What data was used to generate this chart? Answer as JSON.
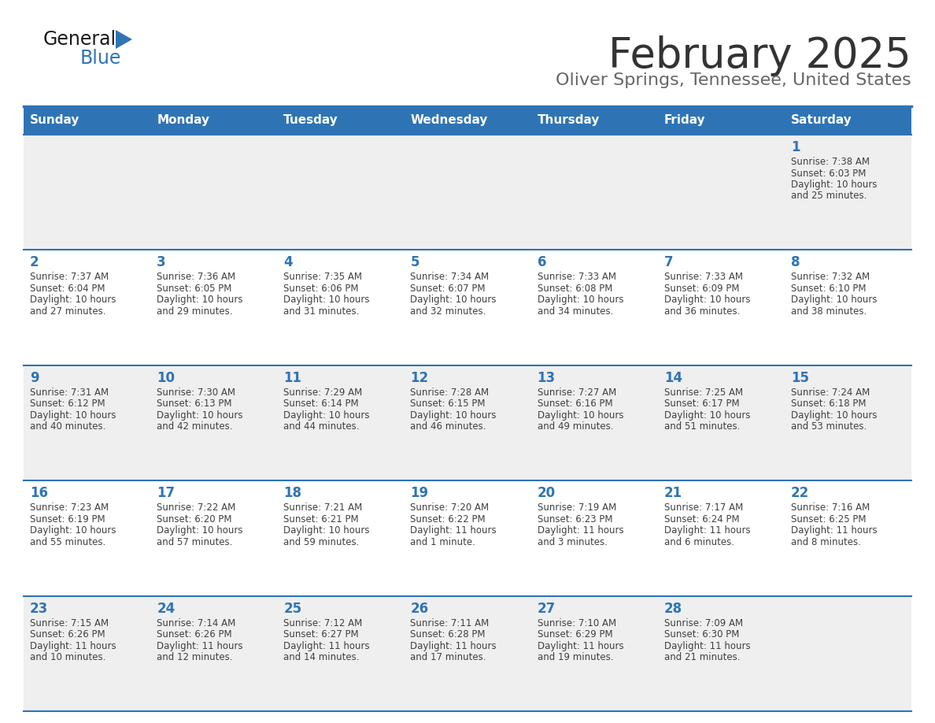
{
  "title": "February 2025",
  "subtitle": "Oliver Springs, Tennessee, United States",
  "days_of_week": [
    "Sunday",
    "Monday",
    "Tuesday",
    "Wednesday",
    "Thursday",
    "Friday",
    "Saturday"
  ],
  "header_bg": "#2E74B5",
  "header_text_color": "#FFFFFF",
  "cell_bg_gray": "#EFEFEF",
  "cell_bg_white": "#FFFFFF",
  "date_color": "#2E74B5",
  "text_color": "#404040",
  "line_color": "#2E74B5",
  "title_color": "#333333",
  "subtitle_color": "#666666",
  "logo_general_color": "#1a1a1a",
  "logo_blue_color": "#2E74B5",
  "weeks": [
    [
      {
        "day": null,
        "sunrise": null,
        "sunset": null,
        "daylight": null
      },
      {
        "day": null,
        "sunrise": null,
        "sunset": null,
        "daylight": null
      },
      {
        "day": null,
        "sunrise": null,
        "sunset": null,
        "daylight": null
      },
      {
        "day": null,
        "sunrise": null,
        "sunset": null,
        "daylight": null
      },
      {
        "day": null,
        "sunrise": null,
        "sunset": null,
        "daylight": null
      },
      {
        "day": null,
        "sunrise": null,
        "sunset": null,
        "daylight": null
      },
      {
        "day": 1,
        "sunrise": "7:38 AM",
        "sunset": "6:03 PM",
        "daylight": "10 hours and 25 minutes."
      }
    ],
    [
      {
        "day": 2,
        "sunrise": "7:37 AM",
        "sunset": "6:04 PM",
        "daylight": "10 hours and 27 minutes."
      },
      {
        "day": 3,
        "sunrise": "7:36 AM",
        "sunset": "6:05 PM",
        "daylight": "10 hours and 29 minutes."
      },
      {
        "day": 4,
        "sunrise": "7:35 AM",
        "sunset": "6:06 PM",
        "daylight": "10 hours and 31 minutes."
      },
      {
        "day": 5,
        "sunrise": "7:34 AM",
        "sunset": "6:07 PM",
        "daylight": "10 hours and 32 minutes."
      },
      {
        "day": 6,
        "sunrise": "7:33 AM",
        "sunset": "6:08 PM",
        "daylight": "10 hours and 34 minutes."
      },
      {
        "day": 7,
        "sunrise": "7:33 AM",
        "sunset": "6:09 PM",
        "daylight": "10 hours and 36 minutes."
      },
      {
        "day": 8,
        "sunrise": "7:32 AM",
        "sunset": "6:10 PM",
        "daylight": "10 hours and 38 minutes."
      }
    ],
    [
      {
        "day": 9,
        "sunrise": "7:31 AM",
        "sunset": "6:12 PM",
        "daylight": "10 hours and 40 minutes."
      },
      {
        "day": 10,
        "sunrise": "7:30 AM",
        "sunset": "6:13 PM",
        "daylight": "10 hours and 42 minutes."
      },
      {
        "day": 11,
        "sunrise": "7:29 AM",
        "sunset": "6:14 PM",
        "daylight": "10 hours and 44 minutes."
      },
      {
        "day": 12,
        "sunrise": "7:28 AM",
        "sunset": "6:15 PM",
        "daylight": "10 hours and 46 minutes."
      },
      {
        "day": 13,
        "sunrise": "7:27 AM",
        "sunset": "6:16 PM",
        "daylight": "10 hours and 49 minutes."
      },
      {
        "day": 14,
        "sunrise": "7:25 AM",
        "sunset": "6:17 PM",
        "daylight": "10 hours and 51 minutes."
      },
      {
        "day": 15,
        "sunrise": "7:24 AM",
        "sunset": "6:18 PM",
        "daylight": "10 hours and 53 minutes."
      }
    ],
    [
      {
        "day": 16,
        "sunrise": "7:23 AM",
        "sunset": "6:19 PM",
        "daylight": "10 hours and 55 minutes."
      },
      {
        "day": 17,
        "sunrise": "7:22 AM",
        "sunset": "6:20 PM",
        "daylight": "10 hours and 57 minutes."
      },
      {
        "day": 18,
        "sunrise": "7:21 AM",
        "sunset": "6:21 PM",
        "daylight": "10 hours and 59 minutes."
      },
      {
        "day": 19,
        "sunrise": "7:20 AM",
        "sunset": "6:22 PM",
        "daylight": "11 hours and 1 minute."
      },
      {
        "day": 20,
        "sunrise": "7:19 AM",
        "sunset": "6:23 PM",
        "daylight": "11 hours and 3 minutes."
      },
      {
        "day": 21,
        "sunrise": "7:17 AM",
        "sunset": "6:24 PM",
        "daylight": "11 hours and 6 minutes."
      },
      {
        "day": 22,
        "sunrise": "7:16 AM",
        "sunset": "6:25 PM",
        "daylight": "11 hours and 8 minutes."
      }
    ],
    [
      {
        "day": 23,
        "sunrise": "7:15 AM",
        "sunset": "6:26 PM",
        "daylight": "11 hours and 10 minutes."
      },
      {
        "day": 24,
        "sunrise": "7:14 AM",
        "sunset": "6:26 PM",
        "daylight": "11 hours and 12 minutes."
      },
      {
        "day": 25,
        "sunrise": "7:12 AM",
        "sunset": "6:27 PM",
        "daylight": "11 hours and 14 minutes."
      },
      {
        "day": 26,
        "sunrise": "7:11 AM",
        "sunset": "6:28 PM",
        "daylight": "11 hours and 17 minutes."
      },
      {
        "day": 27,
        "sunrise": "7:10 AM",
        "sunset": "6:29 PM",
        "daylight": "11 hours and 19 minutes."
      },
      {
        "day": 28,
        "sunrise": "7:09 AM",
        "sunset": "6:30 PM",
        "daylight": "11 hours and 21 minutes."
      },
      {
        "day": null,
        "sunrise": null,
        "sunset": null,
        "daylight": null
      }
    ]
  ]
}
